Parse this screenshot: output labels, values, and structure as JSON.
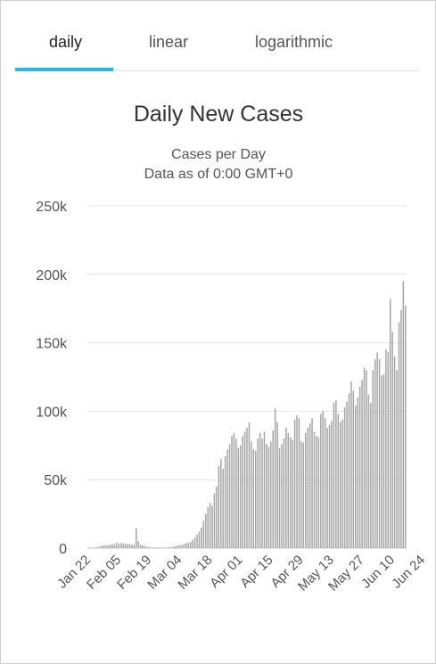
{
  "tabs": [
    {
      "label": "daily",
      "active": true
    },
    {
      "label": "linear",
      "active": false
    },
    {
      "label": "logarithmic",
      "active": false
    }
  ],
  "colors": {
    "accent": "#2ab7e6",
    "bar": "#a3a3a3",
    "grid": "#e6e6e6"
  },
  "chart_data": {
    "type": "bar",
    "title": "Daily New Cases",
    "subtitle_lines": [
      "Cases per Day",
      "Data as of 0:00 GMT+0"
    ],
    "xlabel": "",
    "ylabel": "",
    "ylim": [
      0,
      250000
    ],
    "y_ticks": [
      0,
      50000,
      100000,
      150000,
      200000,
      250000
    ],
    "y_tick_labels": [
      "0",
      "50k",
      "100k",
      "150k",
      "200k",
      "250k"
    ],
    "x_tick_labels": [
      "Jan 22",
      "Feb 05",
      "Feb 19",
      "Mar 04",
      "Mar 18",
      "Apr 01",
      "Apr 15",
      "Apr 29",
      "May 13",
      "May 27",
      "Jun 10",
      "Jun 24"
    ],
    "grid": true,
    "legend": "none",
    "start_date": "Jan 22",
    "values": [
      100,
      200,
      300,
      500,
      800,
      1200,
      1600,
      2000,
      2000,
      2100,
      2600,
      2800,
      3000,
      3800,
      3100,
      3500,
      3700,
      3200,
      2900,
      3000,
      2600,
      2500,
      14500,
      5000,
      2600,
      2000,
      1800,
      1000,
      600,
      500,
      500,
      400,
      500,
      400,
      300,
      400,
      500,
      600,
      800,
      1000,
      1500,
      2000,
      2300,
      2500,
      3000,
      3500,
      4000,
      4500,
      6000,
      8000,
      10000,
      12000,
      15000,
      20000,
      25000,
      30000,
      33000,
      31000,
      40000,
      45000,
      60000,
      65000,
      58000,
      67000,
      72000,
      76000,
      82000,
      84000,
      80000,
      73000,
      75000,
      82000,
      85000,
      88000,
      92000,
      78000,
      72000,
      71000,
      80000,
      84000,
      80000,
      85000,
      76000,
      74000,
      78000,
      86000,
      102000,
      92000,
      73000,
      76000,
      80000,
      88000,
      84000,
      81000,
      79000,
      94000,
      97000,
      95000,
      78000,
      77000,
      84000,
      88000,
      91000,
      95000,
      85000,
      82000,
      81000,
      98000,
      100000,
      95000,
      88000,
      90000,
      93000,
      106000,
      108000,
      98000,
      92000,
      94000,
      103000,
      107000,
      113000,
      122000,
      115000,
      104000,
      110000,
      118000,
      123000,
      132000,
      130000,
      112000,
      106000,
      130000,
      138000,
      143000,
      138000,
      126000,
      127000,
      145000,
      143000,
      182000,
      158000,
      140000,
      130000,
      165000,
      174000,
      195000,
      177000
    ]
  }
}
